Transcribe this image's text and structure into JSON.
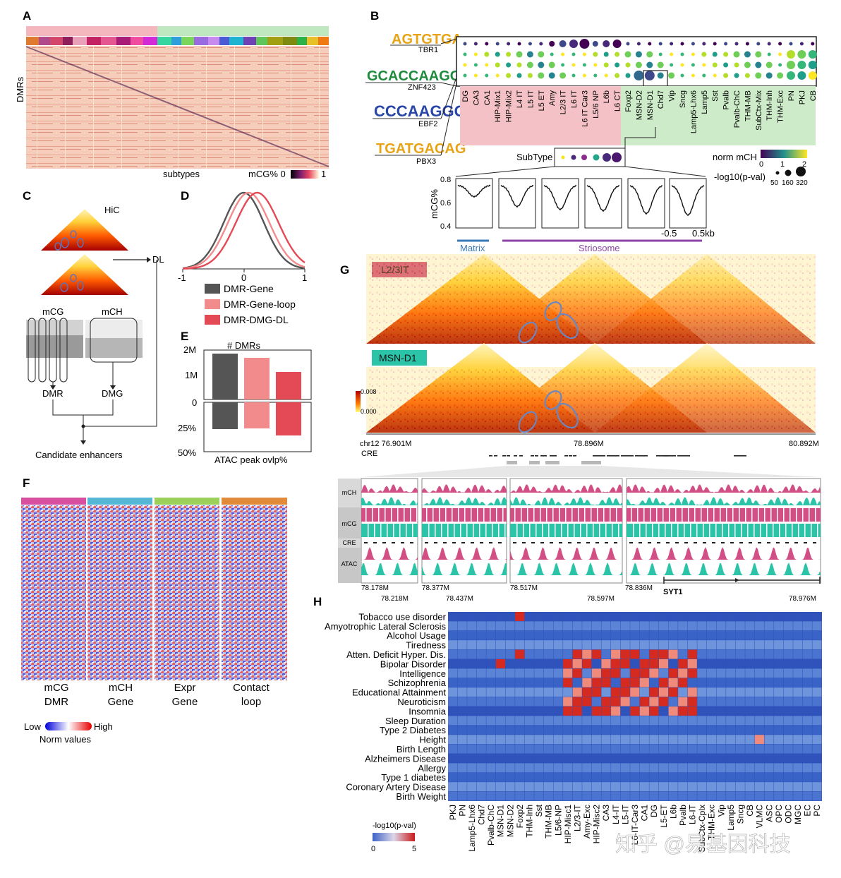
{
  "panels": {
    "a": {
      "label": "A",
      "ylabel": "DMRs",
      "xlabel": "subtypes",
      "colorbar_label": "mCG% 0",
      "colorbar_max": "1"
    },
    "b": {
      "label": "B",
      "motifs": [
        "TBR1",
        "ZNF423",
        "EBF2",
        "PBX3"
      ],
      "subtypes": [
        "DG",
        "CA3",
        "CA1",
        "HIP-Mix1",
        "HIP-Mix2",
        "L4 IT",
        "L5 IT",
        "L5 ET",
        "Amy",
        "L2/3 IT",
        "L6 IT",
        "L6 IT Car3",
        "L5/6 NP",
        "L6b",
        "L6 CT",
        "Foxp2",
        "MSN-D2",
        "MSN-D1",
        "Chd7",
        "Vip",
        "Sncg",
        "Lamp5-Lhx6",
        "Lamp5",
        "Sst",
        "Pvalb",
        "Pvalb-ChC",
        "THM-MB",
        "SubCtx-Mix",
        "THM-Inh",
        "THM-Exc",
        "PN",
        "PKJ",
        "CB"
      ],
      "subtype_label": "SubType",
      "norm_label": "norm mCH",
      "norm_ticks": [
        "0",
        "1",
        "2"
      ],
      "pval_label": "-log10(p-val)",
      "pval_sizes": [
        "50",
        "160",
        "320"
      ],
      "profile_ylabel": "mCG%",
      "profile_yticks": [
        "0.8",
        "0.6",
        "0.4"
      ],
      "profile_xticks": [
        "-0.5",
        "0.5kb"
      ],
      "matrix_label": "Matrix",
      "striosome_label": "Striosome"
    },
    "c": {
      "label": "C",
      "hic_label": "HiC",
      "dl_label": "DL",
      "mcg_label": "mCG",
      "mch_label": "mCH",
      "dmr_label": "DMR",
      "dmg_label": "DMG",
      "output_label": "Candidate enhancers"
    },
    "d": {
      "label": "D",
      "xticks": [
        "-1",
        "0",
        "1"
      ],
      "legend": [
        {
          "name": "DMR-Gene",
          "color": "#555555"
        },
        {
          "name": "DMR-Gene-loop",
          "color": "#f28c8c"
        },
        {
          "name": "DMR-DMG-DL",
          "color": "#e34a56"
        }
      ]
    },
    "e": {
      "label": "E",
      "top_title": "# DMRs",
      "top_ticks": [
        "2M",
        "1M",
        "0"
      ],
      "bottom_ticks": [
        "25%",
        "50%"
      ],
      "bottom_title": "ATAC peak ovlp%"
    },
    "f": {
      "label": "F",
      "columns": [
        {
          "line1": "mCG",
          "line2": "DMR"
        },
        {
          "line1": "mCH",
          "line2": "Gene"
        },
        {
          "line1": "Expr",
          "line2": "Gene"
        },
        {
          "line1": "Contact",
          "line2": "loop"
        }
      ],
      "low": "Low",
      "high": "High",
      "scale_label": "Norm values"
    },
    "g": {
      "label": "G",
      "cell1": "L2/3IT",
      "cell2": "MSN-D1",
      "scale_max": "0.008",
      "scale_min": "0.000",
      "coord_left": "chr12 76.901M",
      "coord_mid": "78.896M",
      "coord_right": "80.892M",
      "cre_label": "CRE",
      "track_labels": [
        "mCH",
        "mCG",
        "CRE",
        "ATAC"
      ],
      "zoom_top_ticks": [
        "78.178M",
        "78.377M",
        "78.517M",
        "78.836M"
      ],
      "zoom_bottom_ticks": [
        "78.218M",
        "78.437M",
        "78.597M",
        "78.976M"
      ],
      "gene": "SYT1"
    },
    "h": {
      "label": "H",
      "traits": [
        "Tobacco use disorder",
        "Amyotrophic Lateral Sclerosis",
        "Alcohol Usage",
        "Tiredness",
        "Atten. Deficit Hyper. Dis.",
        "Bipolar Disorder",
        "Intelligence",
        "Schizophrenia",
        "Educational Attainment",
        "Neuroticism",
        "Insomnia",
        "Sleep Duration",
        "Type 2 Diabetes",
        "Height",
        "Birth Length",
        "Alzheimers Disease",
        "Allergy",
        "Type 1 diabetes",
        "Coronary Artery Disease",
        "Birth Weight"
      ],
      "columns": [
        "PKJ",
        "PN",
        "Lamp5-Lhx6",
        "Chd7",
        "Pvalb-ChC",
        "MSN-D1",
        "MSN-D2",
        "Foxp2",
        "THM-Inh",
        "Sst",
        "THM-MB",
        "L5/6-NP",
        "HIP-Misc1",
        "L2/3-IT",
        "Amy-Exc",
        "HIP-Misc2",
        "CA3",
        "L4-IT",
        "L5-IT",
        "L6-IT-Car3",
        "CA1",
        "DG",
        "L5-ET",
        "L6b",
        "Pvalb",
        "L6-IT",
        "SubCtx-Cplx",
        "THM-Exc",
        "Vip",
        "Lamp5",
        "Sncg",
        "CB",
        "VLMC",
        "ASC",
        "OPC",
        "ODC",
        "MGC",
        "EC",
        "PC"
      ],
      "scale_label": "-log10(p-val)",
      "scale_min": "0",
      "scale_max": "5"
    }
  },
  "watermark": "知乎 @易基因科技"
}
